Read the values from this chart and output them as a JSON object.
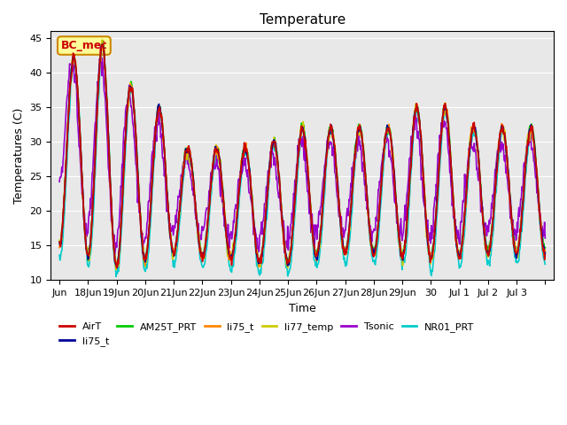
{
  "title": "Temperature",
  "ylabel": "Temperatures (C)",
  "xlabel": "Time",
  "ylim": [
    10,
    46
  ],
  "background_color": "#ffffff",
  "plot_bg_color": "#e8e8e8",
  "series_colors": {
    "AirT": "#cc0000",
    "li75_t_blue": "#000099",
    "AM25T_PRT": "#00cc00",
    "li75_t_orange": "#ff8800",
    "li77_temp": "#cccc00",
    "Tsonic": "#9900cc",
    "NR01_PRT": "#00cccc"
  },
  "legend_labels": [
    "AirT",
    "li75_t",
    "AM25T_PRT",
    "li75_t",
    "li77_temp",
    "Tsonic",
    "NR01_PRT"
  ],
  "annotation_text": "BC_met",
  "annotation_color": "#cc0000",
  "annotation_bg": "#ffff99",
  "annotation_border": "#cc8800",
  "tick_positions": [
    0,
    1,
    2,
    3,
    4,
    5,
    6,
    7,
    8,
    9,
    10,
    11,
    12,
    13,
    14,
    15,
    16,
    17
  ],
  "tick_labels": [
    "Jun",
    "18Jun",
    "19Jun",
    "20Jun",
    "21Jun",
    "22Jun",
    "23Jun",
    "24Jun",
    "25Jun",
    "26Jun",
    "27Jun",
    "28Jun",
    "29Jun",
    "30",
    "Jul 1",
    "Jul 2",
    "Jul 3",
    ""
  ]
}
